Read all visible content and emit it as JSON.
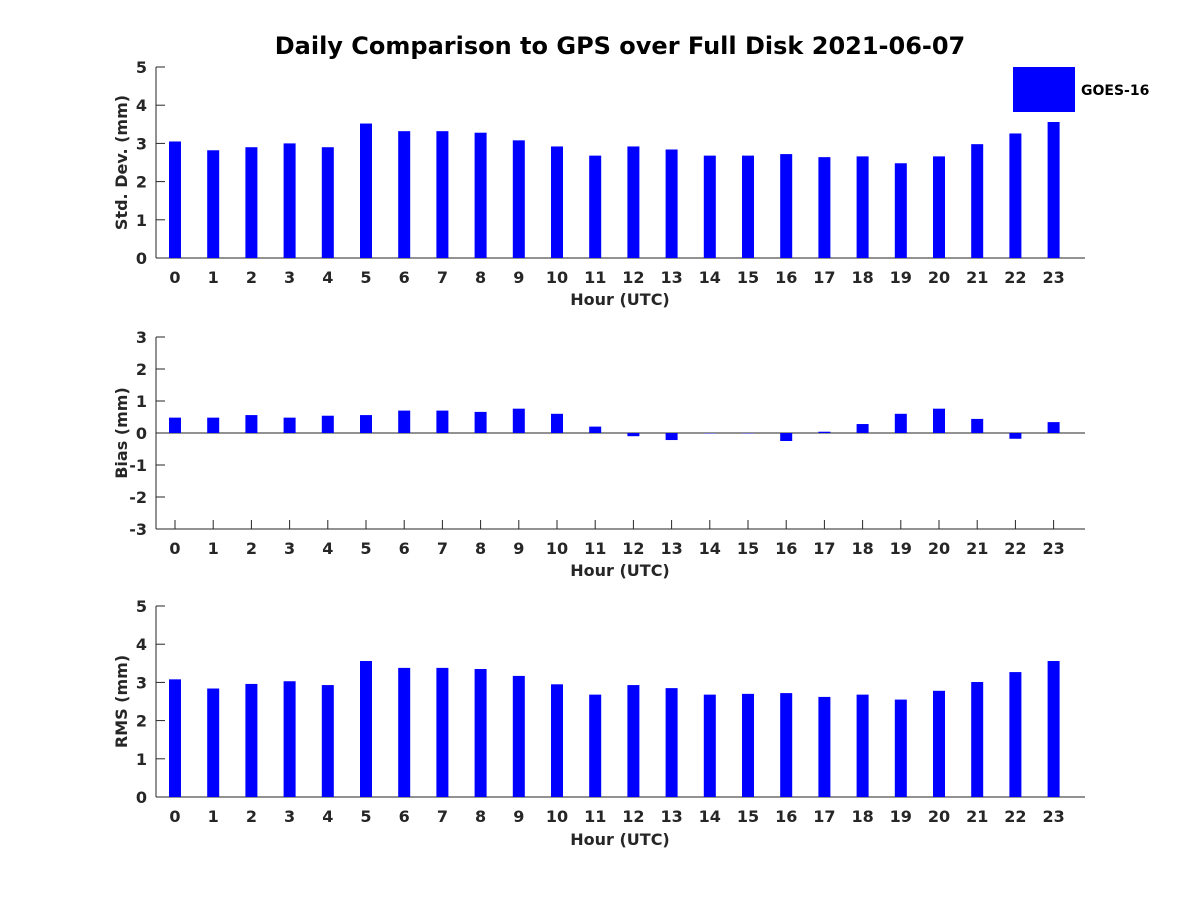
{
  "chart_data": {
    "title": "Daily Comparison to GPS over Full Disk 2021-06-07",
    "type": "bar",
    "legend": {
      "position": "top-right",
      "entries": [
        "GOES-16"
      ],
      "color": "#0000ff"
    },
    "bar_color": "#0000ff",
    "categories": [
      "0",
      "1",
      "2",
      "3",
      "4",
      "5",
      "6",
      "7",
      "8",
      "9",
      "10",
      "11",
      "12",
      "13",
      "14",
      "15",
      "16",
      "17",
      "18",
      "19",
      "20",
      "21",
      "22",
      "23"
    ],
    "panels": [
      {
        "id": "std",
        "ylabel": "Std. Dev. (mm)",
        "xlabel": "Hour (UTC)",
        "ylim": [
          0,
          5
        ],
        "yticks": [
          "0",
          "1",
          "2",
          "3",
          "4",
          "5"
        ],
        "series": [
          {
            "name": "GOES-16",
            "values": [
              3.05,
              2.82,
              2.9,
              3.0,
              2.9,
              3.52,
              3.32,
              3.32,
              3.28,
              3.08,
              2.92,
              2.68,
              2.92,
              2.84,
              2.68,
              2.68,
              2.72,
              2.64,
              2.66,
              2.48,
              2.66,
              2.98,
              3.26,
              3.56
            ]
          }
        ]
      },
      {
        "id": "bias",
        "ylabel": "Bias (mm)",
        "xlabel": "Hour (UTC)",
        "ylim": [
          -3,
          3
        ],
        "yticks": [
          "-3",
          "-2",
          "-1",
          "0",
          "1",
          "2",
          "3"
        ],
        "series": [
          {
            "name": "GOES-16",
            "values": [
              0.48,
              0.48,
              0.56,
              0.48,
              0.54,
              0.56,
              0.7,
              0.7,
              0.66,
              0.76,
              0.6,
              0.2,
              -0.1,
              -0.22,
              -0.01,
              -0.01,
              -0.25,
              0.04,
              0.28,
              0.6,
              0.76,
              0.44,
              -0.18,
              0.34
            ]
          }
        ]
      },
      {
        "id": "rms",
        "ylabel": "RMS (mm)",
        "xlabel": "Hour (UTC)",
        "ylim": [
          0,
          5
        ],
        "yticks": [
          "0",
          "1",
          "2",
          "3",
          "4",
          "5"
        ],
        "series": [
          {
            "name": "GOES-16",
            "values": [
              3.08,
              2.84,
              2.96,
              3.03,
              2.93,
              3.56,
              3.38,
              3.38,
              3.35,
              3.17,
              2.95,
              2.68,
              2.93,
              2.85,
              2.68,
              2.7,
              2.72,
              2.62,
              2.68,
              2.55,
              2.78,
              3.01,
              3.27,
              3.56
            ]
          }
        ]
      }
    ]
  }
}
